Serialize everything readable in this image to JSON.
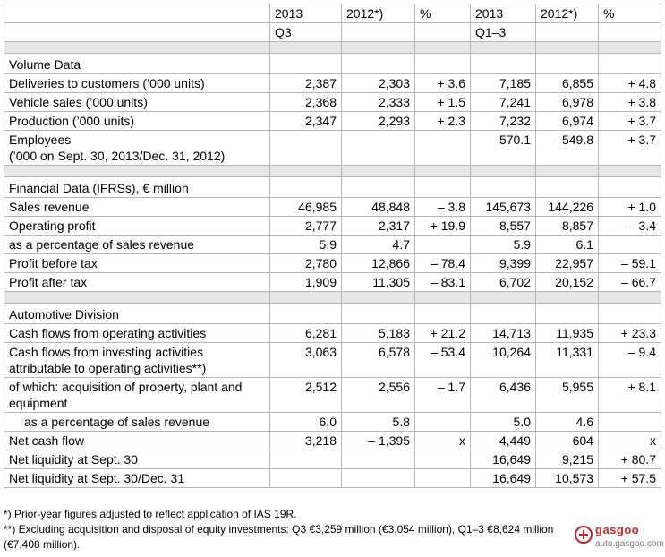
{
  "header": {
    "col_2013_q3": "2013",
    "col_2012_q3": "2012*)",
    "col_pct_q3": "%",
    "col_2013_q13": "2013",
    "col_2012_q13": "2012*)",
    "col_pct_q13": "%",
    "period_q3": "Q3",
    "period_q13": "Q1–3"
  },
  "sections": {
    "volume": "Volume Data",
    "financial": "Financial Data (IFRSs), € million",
    "automotive": "Automotive Division"
  },
  "rows": [
    {
      "label": "Deliveries to customers (’000 units)",
      "v": [
        "2,387",
        "2,303",
        "+ 3.6",
        "7,185",
        "6,855",
        "+ 4.8"
      ]
    },
    {
      "label": "Vehicle sales (’000 units)",
      "v": [
        "2,368",
        "2,333",
        "+ 1.5",
        "7,241",
        "6,978",
        "+ 3.8"
      ]
    },
    {
      "label": "Production (’000 units)",
      "v": [
        "2,347",
        "2,293",
        "+ 2.3",
        "7,232",
        "6,974",
        "+ 3.7"
      ]
    },
    {
      "label": "Employees\n(’000 on Sept. 30, 2013/Dec. 31, 2012)",
      "v": [
        "",
        "",
        "",
        "570.1",
        "549.8",
        "+ 3.7"
      ]
    },
    {
      "label": "Sales revenue",
      "v": [
        "46,985",
        "48,848",
        "– 3.8",
        "145,673",
        "144,226",
        "+ 1.0"
      ]
    },
    {
      "label": "Operating profit",
      "v": [
        "2,777",
        "2,317",
        "+ 19.9",
        "8,557",
        "8,857",
        "– 3.4"
      ]
    },
    {
      "label": "as a percentage of sales revenue",
      "v": [
        "5.9",
        "4.7",
        "",
        "5.9",
        "6.1",
        ""
      ]
    },
    {
      "label": "Profit before tax",
      "v": [
        "2,780",
        "12,866",
        "– 78.4",
        "9,399",
        "22,957",
        "– 59.1"
      ]
    },
    {
      "label": "Profit after tax",
      "v": [
        "1,909",
        "11,305",
        "– 83.1",
        "6,702",
        "20,152",
        "– 66.7"
      ]
    },
    {
      "label": "Cash flows from operating activities",
      "v": [
        "6,281",
        "5,183",
        "+ 21.2",
        "14,713",
        "11,935",
        "+ 23.3"
      ]
    },
    {
      "label": "Cash flows from investing activities attributable to operating activities**)",
      "v": [
        "3,063",
        "6,578",
        "– 53.4",
        "10,264",
        "11,331",
        "– 9.4"
      ]
    },
    {
      "label": "of which: acquisition of property, plant and equipment",
      "v": [
        "2,512",
        "2,556",
        "– 1.7",
        "6,436",
        "5,955",
        "+ 8.1"
      ]
    },
    {
      "label": "as a percentage of sales revenue",
      "v": [
        "6.0",
        "5.8",
        "",
        "5.0",
        "4.6",
        ""
      ]
    },
    {
      "label": "Net cash flow",
      "v": [
        "3,218",
        "– 1,395",
        "x",
        "4,449",
        "604",
        "x"
      ]
    },
    {
      "label": "Net liquidity at Sept. 30",
      "v": [
        "",
        "",
        "",
        "16,649",
        "9,215",
        "+ 80.7"
      ]
    },
    {
      "label": "Net liquidity at Sept. 30/Dec. 31",
      "v": [
        "",
        "",
        "",
        "16,649",
        "10,573",
        "+ 57.5"
      ]
    }
  ],
  "footnotes": {
    "note1": "*) Prior-year figures adjusted to reflect application of IAS 19R.",
    "note2": "**) Excluding acquisition and disposal of equity investments: Q3 €3,259 million (€3,054 million), Q1–3 €8,624 million (€7,408 million)."
  },
  "watermark": {
    "brand": "gasgoo",
    "url": "auto.gasgoo.com"
  }
}
